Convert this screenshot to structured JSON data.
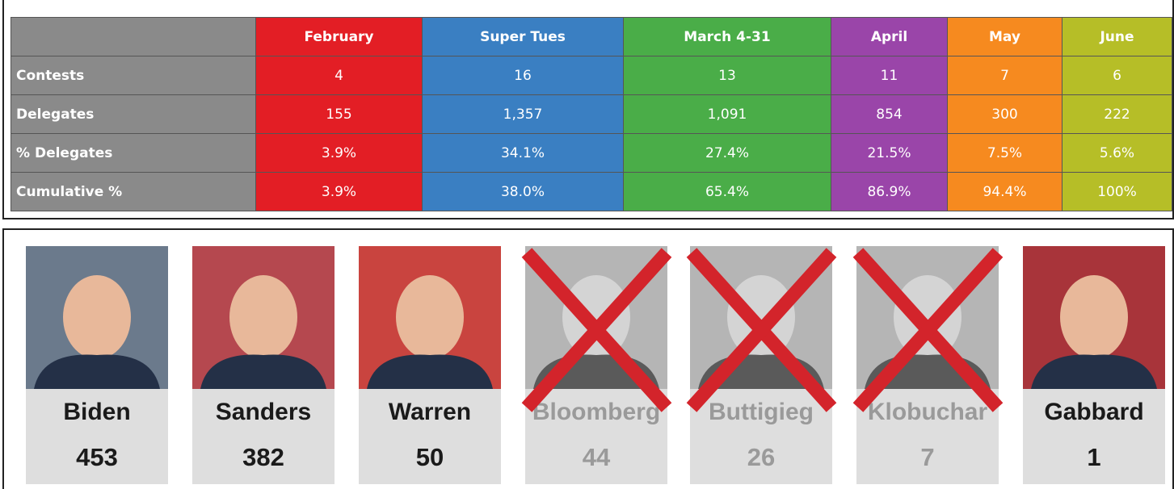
{
  "table": {
    "columns": [
      "February",
      "Super Tues",
      "March 4-31",
      "April",
      "May",
      "June"
    ],
    "colors": [
      "#e31e25",
      "#3a7fc2",
      "#4aad48",
      "#9a45a9",
      "#f68a1f",
      "#b6be27"
    ],
    "label_color": "#8a8a8a",
    "rows": [
      {
        "label": "Contests",
        "values": [
          "4",
          "16",
          "13",
          "11",
          "7",
          "6"
        ]
      },
      {
        "label": "Delegates",
        "values": [
          "155",
          "1,357",
          "1,091",
          "854",
          "300",
          "222"
        ]
      },
      {
        "label": "% Delegates",
        "values": [
          "3.9%",
          "34.1%",
          "27.4%",
          "21.5%",
          "7.5%",
          "5.6%"
        ]
      },
      {
        "label": "Cumulative %",
        "values": [
          "3.9%",
          "38.0%",
          "65.4%",
          "86.9%",
          "94.4%",
          "100%"
        ]
      }
    ]
  },
  "candidates": [
    {
      "name": "Biden",
      "delegates": 453,
      "withdrawn": false,
      "color": "#6b7a8c"
    },
    {
      "name": "Sanders",
      "delegates": 382,
      "withdrawn": false,
      "color": "#b5484f"
    },
    {
      "name": "Warren",
      "delegates": 50,
      "withdrawn": false,
      "color": "#c9443f"
    },
    {
      "name": "Bloomberg",
      "delegates": 44,
      "withdrawn": true,
      "color": "#8f8f8f"
    },
    {
      "name": "Buttigieg",
      "delegates": 26,
      "withdrawn": true,
      "color": "#8a8a8a"
    },
    {
      "name": "Klobuchar",
      "delegates": 7,
      "withdrawn": true,
      "color": "#a0a0a0"
    },
    {
      "name": "Gabbard",
      "delegates": 1,
      "withdrawn": false,
      "color": "#a8343a"
    }
  ]
}
